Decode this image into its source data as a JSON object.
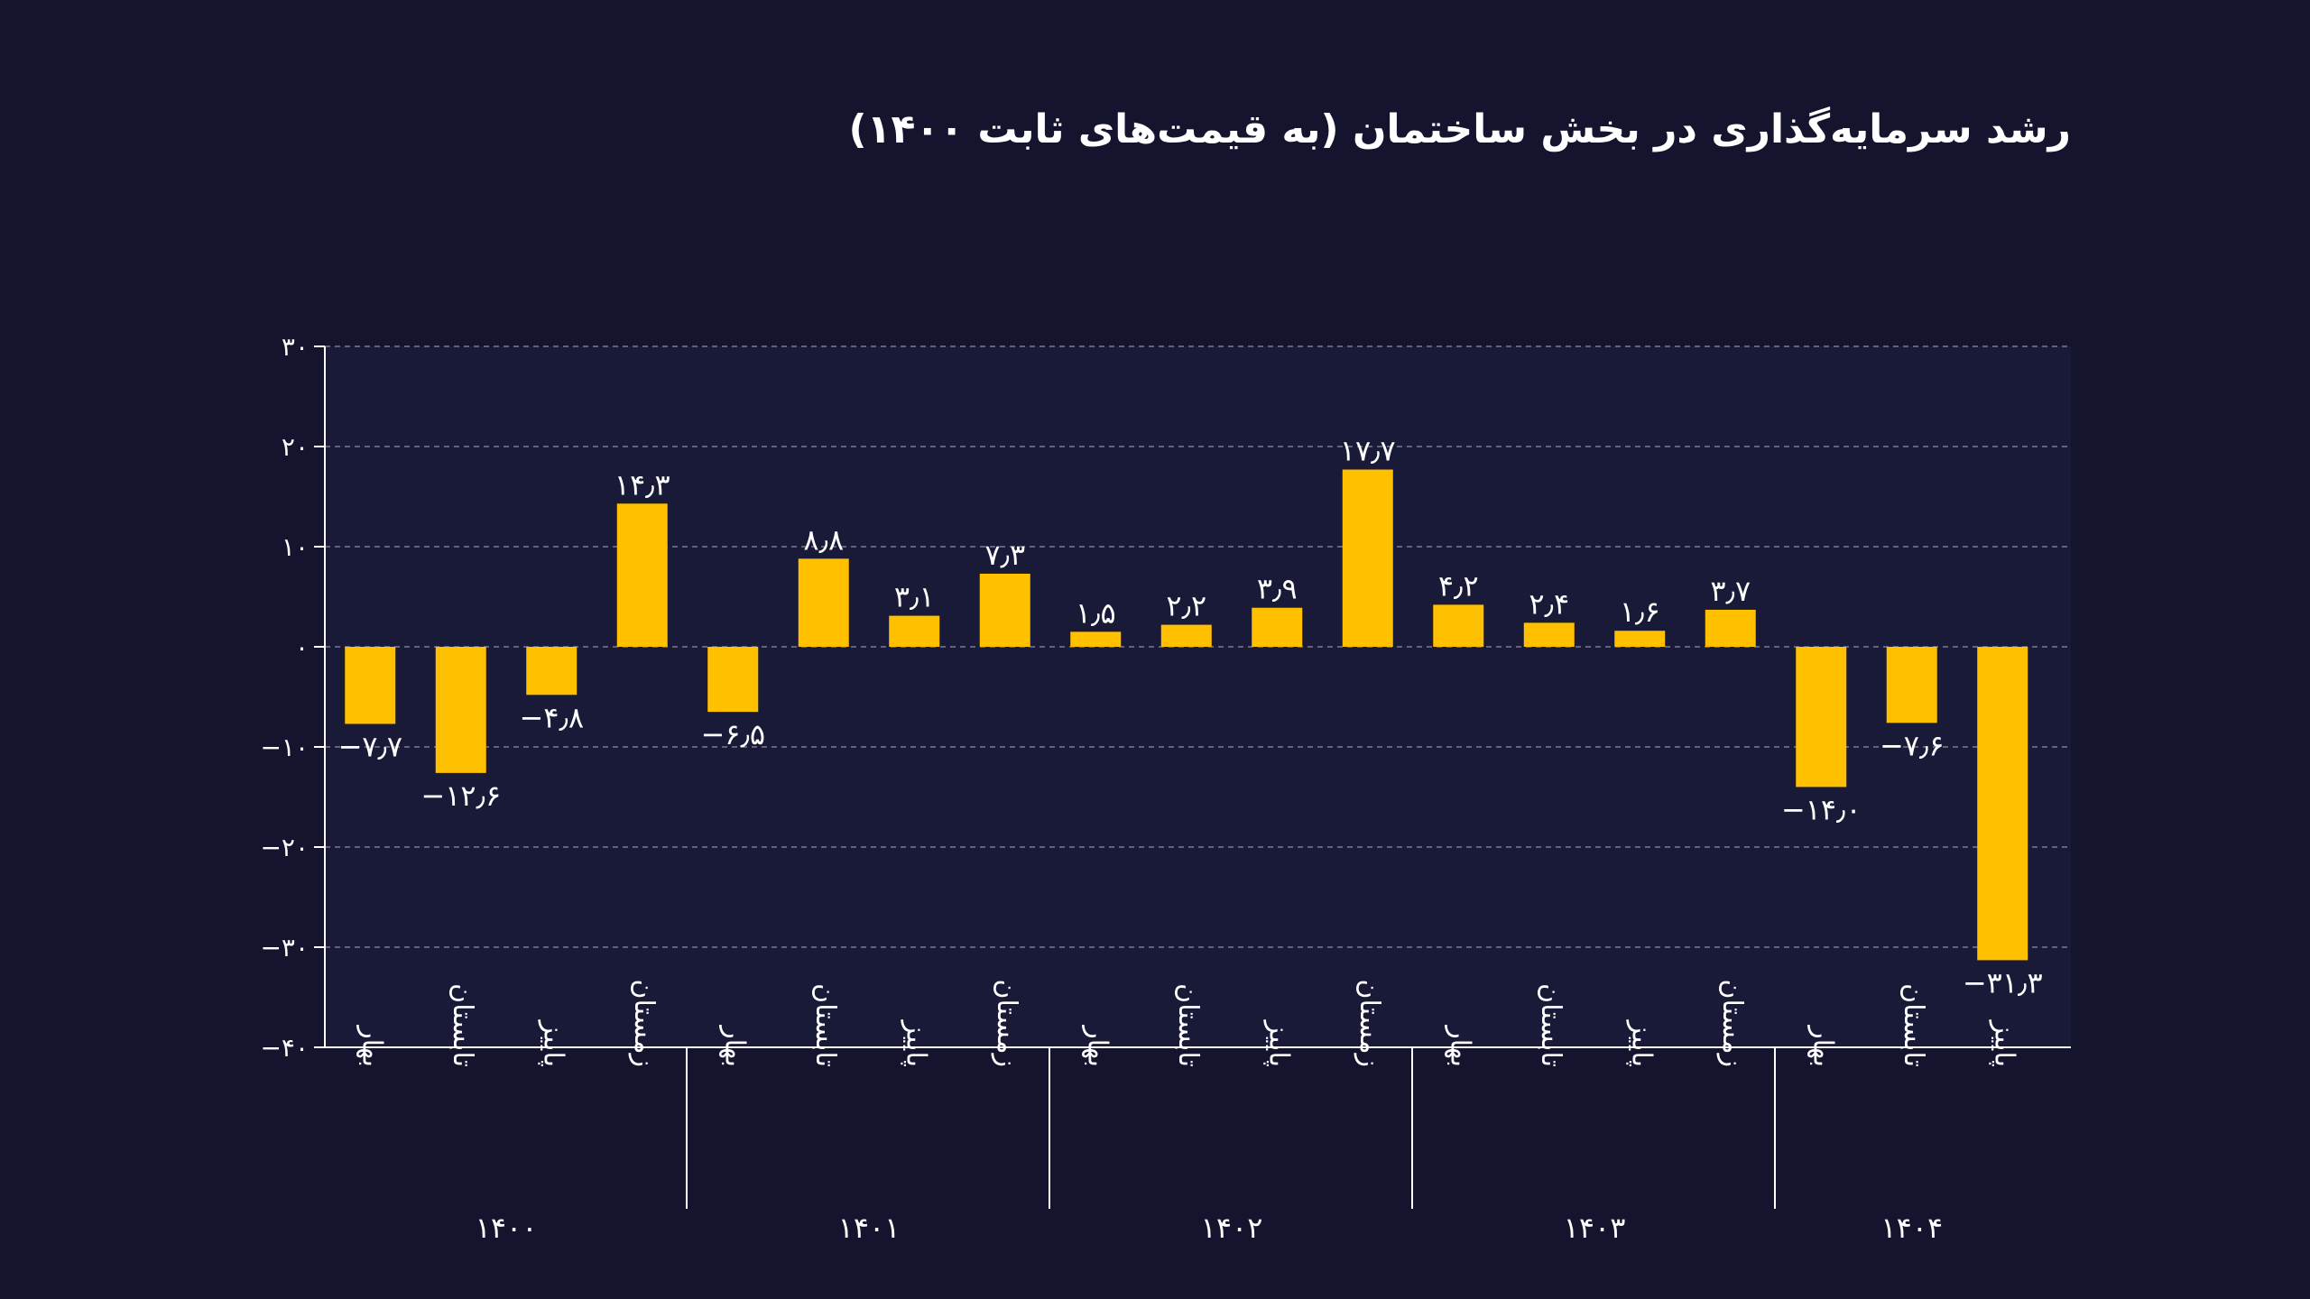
{
  "title": "رشد سرمایه‌گذاری در بخش ساختمان (به قیمت‌های ثابت ۱۴۰۰)",
  "colors": {
    "background": "#14142f",
    "plot_background": "#191938",
    "bar": "#ffc000",
    "grid": "#7b7b95",
    "axis": "#ffffff",
    "text": "#ffffff"
  },
  "chart_data": {
    "type": "bar",
    "title": "رشد سرمایه‌گذاری در بخش ساختمان (به قیمت‌های ثابت ۱۴۰۰)",
    "xlabel": "",
    "ylabel": "",
    "ylim": [
      -40,
      30
    ],
    "yticks": [
      30,
      20,
      10,
      0,
      -10,
      -20,
      -30,
      -40
    ],
    "ytick_labels": [
      "۳۰",
      "۲۰",
      "۱۰",
      "۰",
      "−۱۰",
      "−۲۰",
      "−۳۰",
      "−۴۰"
    ],
    "grid": true,
    "groups": [
      {
        "year": "۱۴۰۰",
        "categories": [
          "بهار",
          "تابستان",
          "پاییز",
          "زمستان"
        ],
        "values": [
          -7.7,
          -12.6,
          -4.8,
          14.3
        ],
        "labels": [
          "−۷٫۷",
          "−۱۲٫۶",
          "−۴٫۸",
          "۱۴٫۳"
        ]
      },
      {
        "year": "۱۴۰۱",
        "categories": [
          "بهار",
          "تابستان",
          "پاییز",
          "زمستان"
        ],
        "values": [
          -6.5,
          8.8,
          3.1,
          7.3
        ],
        "labels": [
          "−۶٫۵",
          "۸٫۸",
          "۳٫۱",
          "۷٫۳"
        ]
      },
      {
        "year": "۱۴۰۲",
        "categories": [
          "بهار",
          "تابستان",
          "پاییز",
          "زمستان"
        ],
        "values": [
          1.5,
          2.2,
          3.9,
          17.7
        ],
        "labels": [
          "۱٫۵",
          "۲٫۲",
          "۳٫۹",
          "۱۷٫۷"
        ]
      },
      {
        "year": "۱۴۰۳",
        "categories": [
          "بهار",
          "تابستان",
          "پاییز",
          "زمستان"
        ],
        "values": [
          4.2,
          2.4,
          1.6,
          3.7
        ],
        "labels": [
          "۴٫۲",
          "۲٫۴",
          "۱٫۶",
          "۳٫۷"
        ]
      },
      {
        "year": "۱۴۰۴",
        "categories": [
          "بهار",
          "تابستان",
          "پاییز"
        ],
        "values": [
          -14.0,
          -7.6,
          -31.3
        ],
        "labels": [
          "−۱۴٫۰",
          "−۷٫۶",
          "−۳۱٫۳"
        ]
      }
    ]
  }
}
